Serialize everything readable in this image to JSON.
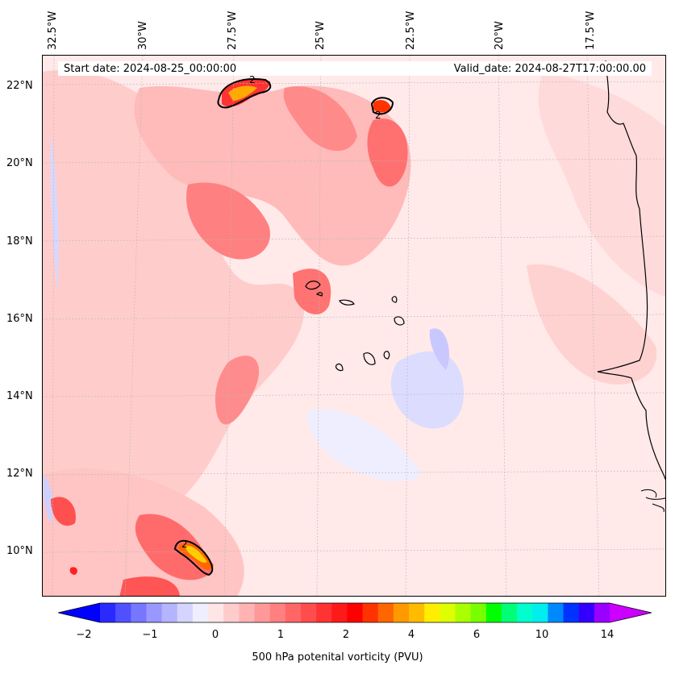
{
  "map": {
    "longitude_labels": [
      "32.5°W",
      "30°W",
      "27.5°W",
      "25°W",
      "22.5°W",
      "20°W",
      "17.5°W"
    ],
    "latitude_labels": [
      "22°N",
      "20°N",
      "18°N",
      "16°N",
      "14°N",
      "12°N",
      "10°N"
    ],
    "start_date": "Start date: 2024-08-25_00:00:00",
    "valid_date": "Valid_date: 2024-08-27T17:00:00.00",
    "contour_labels": [
      "2",
      "2",
      "2"
    ]
  },
  "colorbar": {
    "label": "500 hPa potenital vorticity (PVU)",
    "ticks": [
      "−2",
      "−1",
      "0",
      "1",
      "2",
      "4",
      "6",
      "10",
      "14"
    ],
    "colors": [
      "#0000ff",
      "#2a2aff",
      "#5050ff",
      "#7676ff",
      "#9898ff",
      "#b4b4ff",
      "#d4d4ff",
      "#eeeeff",
      "#ffe6e6",
      "#ffcccc",
      "#ffb3b3",
      "#ff9999",
      "#ff8080",
      "#ff6666",
      "#ff4d4d",
      "#ff3333",
      "#ff1a1a",
      "#ff0000",
      "#ff3300",
      "#ff6600",
      "#ff9900",
      "#ffbb00",
      "#ffee00",
      "#ddff00",
      "#aaff00",
      "#77ff00",
      "#00ff00",
      "#00ff77",
      "#00ffcc",
      "#00eeee",
      "#0088ff",
      "#0033ff",
      "#3300ff",
      "#9900ff",
      "#cc00ff"
    ]
  }
}
